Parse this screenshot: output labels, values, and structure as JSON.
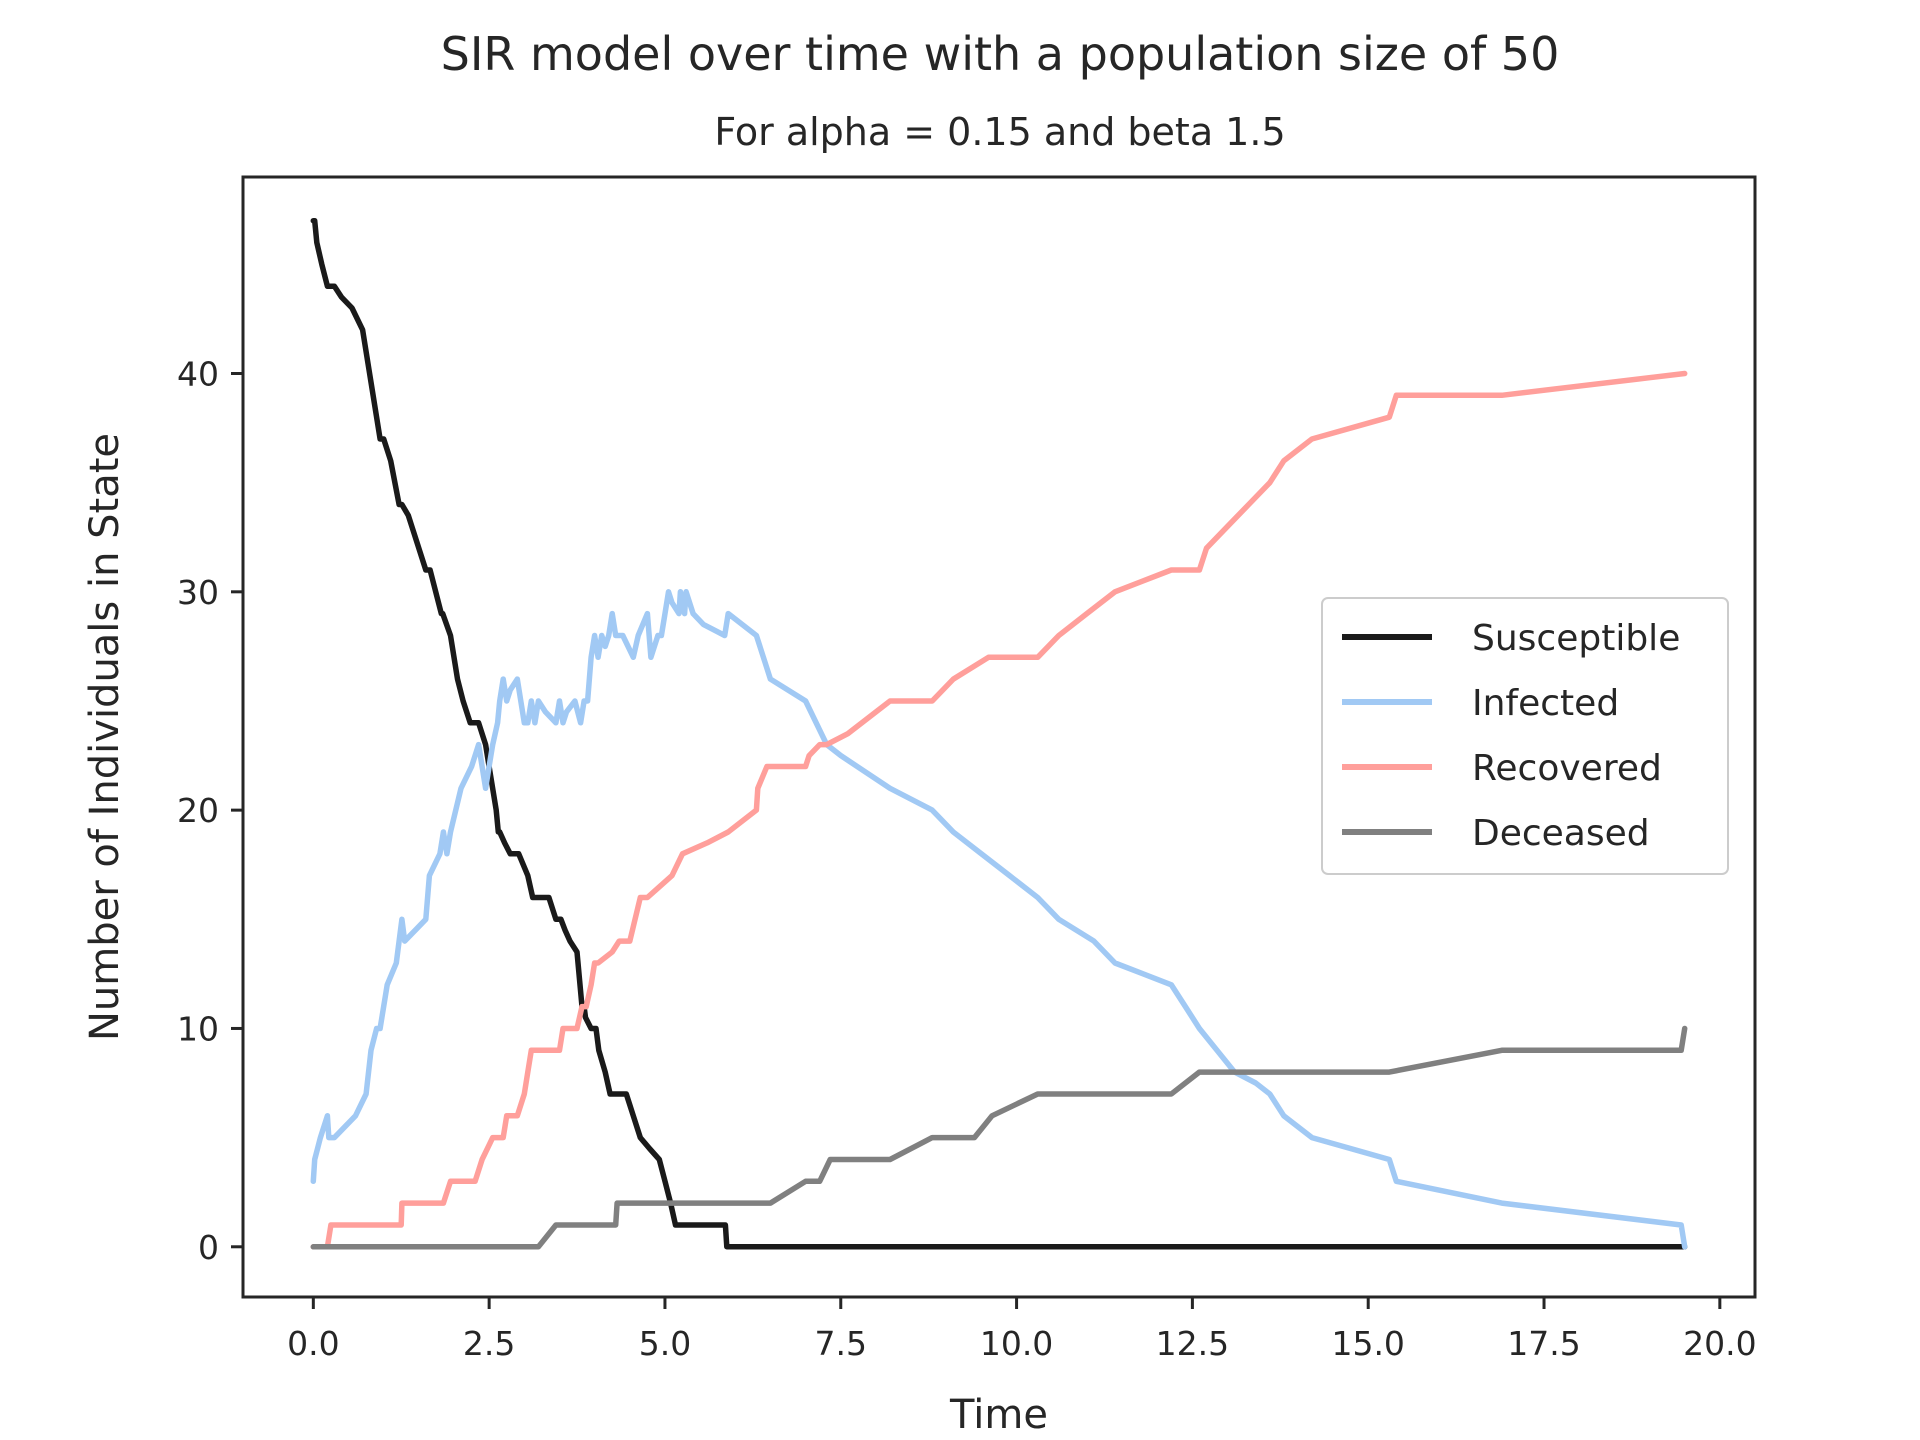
{
  "chart_data": {
    "type": "line",
    "title": "SIR model over time with a population size of 50",
    "subtitle": "For alpha = 0.15 and beta 1.5",
    "xlabel": "Time",
    "ylabel": "Number of Individuals in State",
    "xlim": [
      -1.0,
      20.5
    ],
    "ylim": [
      -2.3,
      49.0
    ],
    "xticks": [
      "0.0",
      "2.5",
      "5.0",
      "7.5",
      "10.0",
      "12.5",
      "15.0",
      "17.5",
      "20.0"
    ],
    "yticks": [
      "0",
      "10",
      "20",
      "30",
      "40"
    ],
    "grid": false,
    "legend_position": "center-right",
    "series": [
      {
        "name": "Susceptible",
        "color": "#1a1a1a",
        "x": [
          0.0,
          0.02,
          0.05,
          0.12,
          0.2,
          0.2,
          0.3,
          0.4,
          0.55,
          0.7,
          0.8,
          0.85,
          0.95,
          1.0,
          1.1,
          1.22,
          1.26,
          1.35,
          1.4,
          1.6,
          1.66,
          1.82,
          1.84,
          1.95,
          2.05,
          2.13,
          2.23,
          2.35,
          2.45,
          2.5,
          2.6,
          2.63,
          2.65,
          2.72,
          2.8,
          2.92,
          3.05,
          3.12,
          3.22,
          3.35,
          3.45,
          3.52,
          3.58,
          3.65,
          3.75,
          3.82,
          3.85,
          3.87,
          3.95,
          4.02,
          4.06,
          4.15,
          4.22,
          4.3,
          4.45,
          4.55,
          4.65,
          4.78,
          4.92,
          5.0,
          5.08,
          5.15,
          5.2,
          5.3,
          5.5,
          5.86,
          5.88,
          19.5
        ],
        "y": [
          47,
          47,
          46,
          45,
          44,
          44,
          44,
          43.5,
          43,
          42,
          40,
          39,
          37,
          37,
          36,
          34,
          34,
          33.5,
          33,
          31,
          31,
          29,
          29,
          28,
          26,
          25,
          24,
          24,
          23,
          22,
          20,
          19,
          19,
          18.5,
          18,
          18,
          17,
          16,
          16,
          16,
          15,
          15,
          14.5,
          14,
          13.5,
          11,
          11,
          10.5,
          10,
          10,
          9,
          8,
          7,
          7,
          7,
          6,
          5,
          4.5,
          4,
          3,
          2,
          1,
          1,
          1,
          1,
          1,
          0,
          0
        ]
      },
      {
        "name": "Infected",
        "color": "#a1c9f4",
        "x": [
          0.0,
          0.02,
          0.1,
          0.2,
          0.22,
          0.3,
          0.6,
          0.75,
          0.82,
          0.9,
          0.95,
          1.05,
          1.18,
          1.22,
          1.26,
          1.3,
          1.45,
          1.6,
          1.65,
          1.8,
          1.85,
          1.9,
          1.95,
          2.1,
          2.25,
          2.35,
          2.45,
          2.5,
          2.55,
          2.62,
          2.65,
          2.7,
          2.75,
          2.8,
          2.9,
          2.95,
          3.0,
          3.05,
          3.1,
          3.15,
          3.2,
          3.3,
          3.45,
          3.5,
          3.55,
          3.6,
          3.72,
          3.8,
          3.85,
          3.9,
          3.95,
          4.0,
          4.05,
          4.1,
          4.15,
          4.2,
          4.25,
          4.3,
          4.4,
          4.55,
          4.62,
          4.75,
          4.8,
          4.9,
          4.95,
          5.0,
          5.05,
          5.1,
          5.2,
          5.22,
          5.28,
          5.3,
          5.4,
          5.55,
          5.85,
          5.9,
          6.3,
          6.4,
          6.5,
          7.0,
          7.3,
          7.5,
          8.2,
          8.8,
          9.1,
          9.5,
          9.9,
          10.3,
          10.6,
          11.1,
          11.4,
          12.2,
          12.4,
          12.6,
          12.85,
          13.1,
          13.4,
          13.6,
          13.8,
          14.2,
          15.3,
          15.4,
          16.9,
          19.45,
          19.5
        ],
        "y": [
          3,
          4,
          5,
          6,
          5,
          5,
          6,
          7,
          9,
          10,
          10,
          12,
          13,
          14,
          15,
          14,
          14.5,
          15,
          17,
          18,
          19,
          18,
          19,
          21,
          22,
          23,
          21,
          22,
          23,
          24,
          25,
          26,
          25,
          25.5,
          26,
          25,
          24,
          24,
          25,
          24,
          25,
          24.5,
          24,
          25,
          24,
          24.5,
          25,
          24,
          25,
          25,
          27,
          28,
          27,
          28,
          27.5,
          28,
          29,
          28,
          28,
          27,
          28,
          29,
          27,
          28,
          28,
          29,
          30,
          29.5,
          29,
          30,
          29,
          30,
          29,
          28.5,
          28,
          29,
          28,
          27,
          26,
          25,
          23,
          22.5,
          21,
          20,
          19,
          18,
          17,
          16,
          15,
          14,
          13,
          12,
          11,
          10,
          9,
          8,
          7.5,
          7,
          6,
          5,
          4,
          3,
          2,
          1,
          0
        ]
      },
      {
        "name": "Recovered",
        "color": "#ff9f9b",
        "x": [
          0.0,
          0.2,
          0.25,
          1.25,
          1.26,
          1.85,
          1.95,
          2.3,
          2.4,
          2.55,
          2.6,
          2.7,
          2.75,
          2.9,
          3.0,
          3.05,
          3.1,
          3.5,
          3.55,
          3.75,
          3.82,
          3.88,
          3.95,
          4.0,
          4.05,
          4.25,
          4.35,
          4.5,
          4.65,
          4.72,
          4.75,
          5.1,
          5.25,
          5.6,
          5.9,
          6.3,
          6.32,
          6.45,
          6.55,
          7.0,
          7.05,
          7.2,
          7.3,
          7.6,
          8.0,
          8.2,
          8.5,
          8.8,
          9.1,
          9.6,
          10.2,
          10.3,
          10.6,
          11.0,
          11.4,
          12.2,
          12.6,
          12.7,
          13.0,
          13.3,
          13.6,
          13.8,
          14.2,
          15.3,
          15.4,
          16.9,
          19.5
        ],
        "y": [
          0,
          0,
          1,
          1,
          2,
          2,
          3,
          3,
          4,
          5,
          5,
          5,
          6,
          6,
          7,
          8,
          9,
          9,
          10,
          10,
          11,
          11,
          12,
          13,
          13,
          13.5,
          14,
          14,
          16,
          16,
          16,
          17,
          18,
          18.5,
          19,
          20,
          21,
          22,
          22,
          22,
          22.5,
          23,
          23,
          23.5,
          24.5,
          25,
          25,
          25,
          26,
          27,
          27,
          27,
          28,
          29,
          30,
          31,
          31,
          32,
          33,
          34,
          35,
          36,
          37,
          38,
          39,
          39,
          40
        ]
      },
      {
        "name": "Deceased",
        "color": "#808080",
        "x": [
          0.0,
          3.2,
          3.45,
          4.3,
          4.32,
          6.5,
          7.0,
          7.2,
          7.35,
          8.2,
          8.8,
          9.4,
          9.65,
          10.3,
          12.2,
          12.6,
          15.3,
          16.9,
          19.45,
          19.5
        ],
        "y": [
          0,
          0,
          1,
          1,
          2,
          2,
          3,
          3,
          4,
          4,
          5,
          5,
          6,
          7,
          7,
          8,
          8,
          9,
          9,
          10
        ]
      }
    ]
  }
}
